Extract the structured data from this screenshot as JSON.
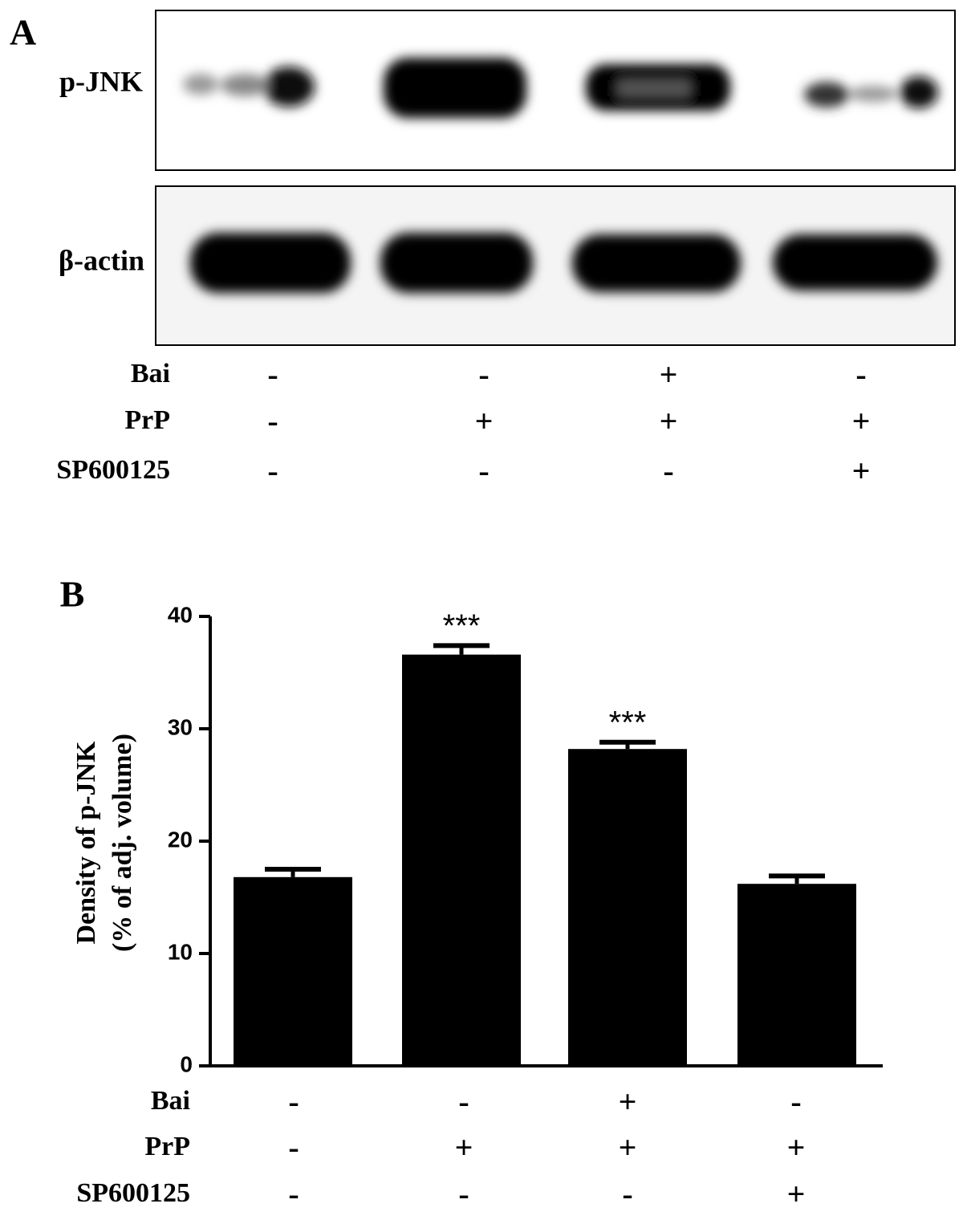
{
  "blot": {
    "label": "A",
    "rows": [
      "p-JNK",
      "β-actin"
    ],
    "treatments": [
      {
        "name": "Bai",
        "values": [
          "-",
          "-",
          "+",
          "-"
        ]
      },
      {
        "name": "PrP",
        "values": [
          "-",
          "+",
          "+",
          "+"
        ]
      },
      {
        "name": "SP600125",
        "values": [
          "-",
          "-",
          "-",
          "+"
        ]
      }
    ]
  },
  "chart_data": {
    "type": "bar",
    "panel_label": "B",
    "ylabel": [
      "Density of p-JNK",
      "(% of adj. volume)"
    ],
    "categories": [
      null,
      null,
      null,
      null
    ],
    "values": [
      16.8,
      36.6,
      28.2,
      16.2
    ],
    "errors": [
      0.7,
      0.8,
      0.6,
      0.7
    ],
    "significance": [
      null,
      "***",
      "***",
      null
    ],
    "color": "#000000",
    "ylim": [
      0,
      40
    ],
    "yticks": [
      0,
      10,
      20,
      30,
      40
    ],
    "treatments": [
      {
        "name": "Bai",
        "values": [
          "-",
          "-",
          "+",
          "-"
        ]
      },
      {
        "name": "PrP",
        "values": [
          "-",
          "+",
          "+",
          "+"
        ]
      },
      {
        "name": "SP600125",
        "values": [
          "-",
          "-",
          "-",
          "+"
        ]
      }
    ]
  }
}
